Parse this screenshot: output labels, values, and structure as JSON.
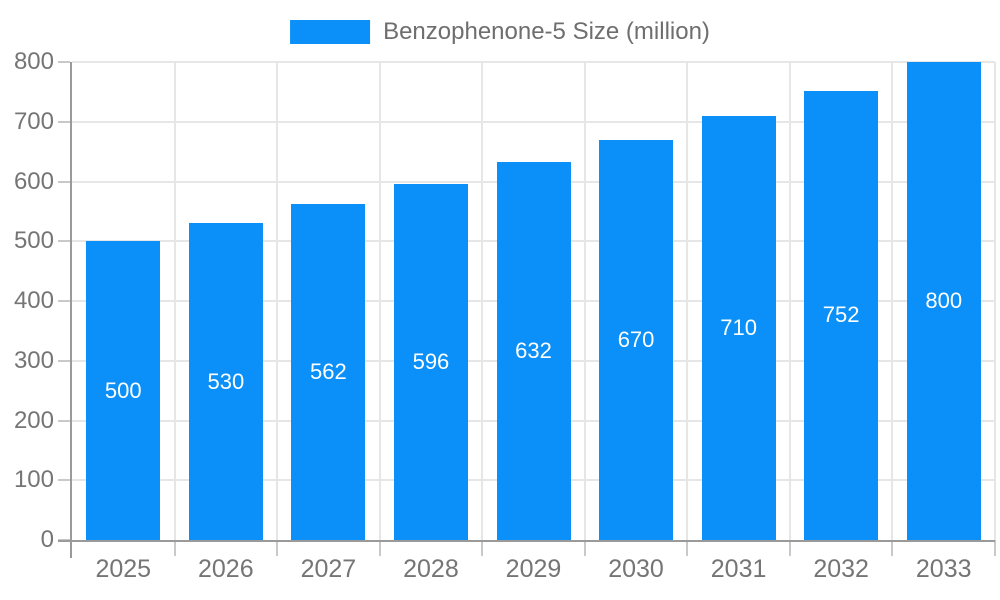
{
  "chart_data": {
    "type": "bar",
    "title": "",
    "legend_label": "Benzophenone-5 Size (million)",
    "legend_position": "top",
    "categories": [
      "2025",
      "2026",
      "2027",
      "2028",
      "2029",
      "2030",
      "2031",
      "2032",
      "2033"
    ],
    "values": [
      500,
      530,
      562,
      596,
      632,
      670,
      710,
      752,
      800
    ],
    "value_labels": [
      "500",
      "530",
      "562",
      "596",
      "632",
      "670",
      "710",
      "752",
      "800"
    ],
    "xlabel": "",
    "ylabel": "",
    "ylim": [
      0,
      800
    ],
    "ytick_step": 100,
    "y_tick_labels": [
      "0",
      "100",
      "200",
      "300",
      "400",
      "500",
      "600",
      "700",
      "800"
    ],
    "grid": true,
    "colors": {
      "bar": "#0A90F8",
      "value_label": "#FFFFFF",
      "axis_text": "#757575",
      "legend_text": "#6E6E6E",
      "grid_line": "#E6E6E6",
      "axis_line": "#9A9A9A",
      "tick_line": "#C9C9C9",
      "background": "#FFFFFF"
    }
  }
}
